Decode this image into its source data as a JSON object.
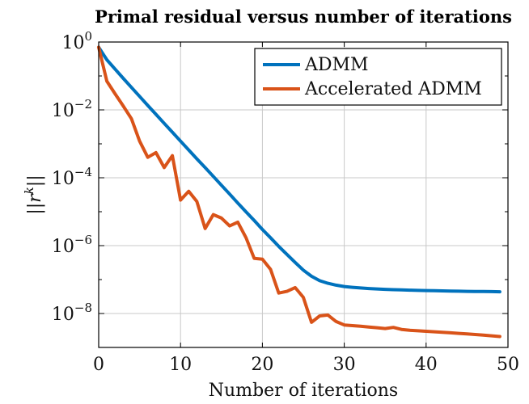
{
  "chart_data": {
    "type": "line",
    "title": "Primal residual versus number of iterations",
    "xlabel": "Number of iterations",
    "ylabel": "||r^k||",
    "xlim": [
      0,
      50
    ],
    "ylim_exponent": [
      -9,
      0
    ],
    "yscale": "log",
    "grid": true,
    "legend_position": "top-right",
    "x_ticks": [
      0,
      10,
      20,
      30,
      40,
      50
    ],
    "y_ticks": [
      {
        "base": "10",
        "exp": "0",
        "value": 1
      },
      {
        "base": "10",
        "exp": "−2",
        "value": 0.01
      },
      {
        "base": "10",
        "exp": "−4",
        "value": 0.0001
      },
      {
        "base": "10",
        "exp": "−6",
        "value": 1e-06
      },
      {
        "base": "10",
        "exp": "−8",
        "value": 1e-08
      }
    ],
    "series": [
      {
        "name": "ADMM",
        "color": "#0072BD",
        "x": [
          0,
          1,
          2,
          3,
          4,
          5,
          6,
          7,
          8,
          9,
          10,
          11,
          12,
          13,
          14,
          15,
          16,
          17,
          18,
          19,
          20,
          21,
          22,
          23,
          24,
          25,
          26,
          27,
          28,
          29,
          30,
          31,
          32,
          33,
          34,
          35,
          36,
          37,
          38,
          39,
          40,
          41,
          42,
          43,
          44,
          45,
          46,
          47,
          48,
          49
        ],
        "y": [
          0.7,
          0.3,
          0.16,
          0.085,
          0.046,
          0.025,
          0.0135,
          0.0074,
          0.004,
          0.0022,
          0.0012,
          0.00066,
          0.00036,
          0.0002,
          0.00011,
          6e-05,
          3.3e-05,
          1.8e-05,
          9.9e-06,
          5.5e-06,
          3e-06,
          1.7e-06,
          9.5e-07,
          5.5e-07,
          3.2e-07,
          1.9e-07,
          1.25e-07,
          9.25e-08,
          7.75e-08,
          6.85e-08,
          6.25e-08,
          5.9e-08,
          5.65e-08,
          5.45e-08,
          5.3e-08,
          5.15e-08,
          5.05e-08,
          4.95e-08,
          4.87e-08,
          4.8e-08,
          4.74e-08,
          4.68e-08,
          4.63e-08,
          4.58e-08,
          4.54e-08,
          4.5e-08,
          4.47e-08,
          4.44e-08,
          4.41e-08,
          4.38e-08
        ]
      },
      {
        "name": "Accelerated ADMM",
        "color": "#D95319",
        "x": [
          0,
          1,
          2,
          3,
          4,
          5,
          6,
          7,
          8,
          9,
          10,
          11,
          12,
          13,
          14,
          15,
          16,
          17,
          18,
          19,
          20,
          21,
          22,
          23,
          24,
          25,
          26,
          27,
          28,
          29,
          30,
          31,
          32,
          33,
          34,
          35,
          36,
          37,
          38,
          39,
          40,
          41,
          42,
          43,
          44,
          45,
          46,
          47,
          48,
          49
        ],
        "y": [
          0.7,
          0.07,
          0.03,
          0.013,
          0.0055,
          0.0012,
          0.0004,
          0.00055,
          0.0002,
          0.00045,
          2.2e-05,
          4e-05,
          2e-05,
          3.2e-06,
          8.2e-06,
          6.5e-06,
          3.8e-06,
          4.9e-06,
          1.7e-06,
          4.2e-07,
          4e-07,
          2e-07,
          4e-08,
          4.5e-08,
          5.8e-08,
          3e-08,
          5.5e-09,
          8.5e-09,
          9e-09,
          5.8e-09,
          4.6e-09,
          4.4e-09,
          4.2e-09,
          4e-09,
          3.8e-09,
          3.6e-09,
          3.9e-09,
          3.4e-09,
          3.2e-09,
          3.1e-09,
          3e-09,
          2.9e-09,
          2.8e-09,
          2.7e-09,
          2.6e-09,
          2.5e-09,
          2.4e-09,
          2.3e-09,
          2.2e-09,
          2.1e-09
        ]
      }
    ]
  }
}
